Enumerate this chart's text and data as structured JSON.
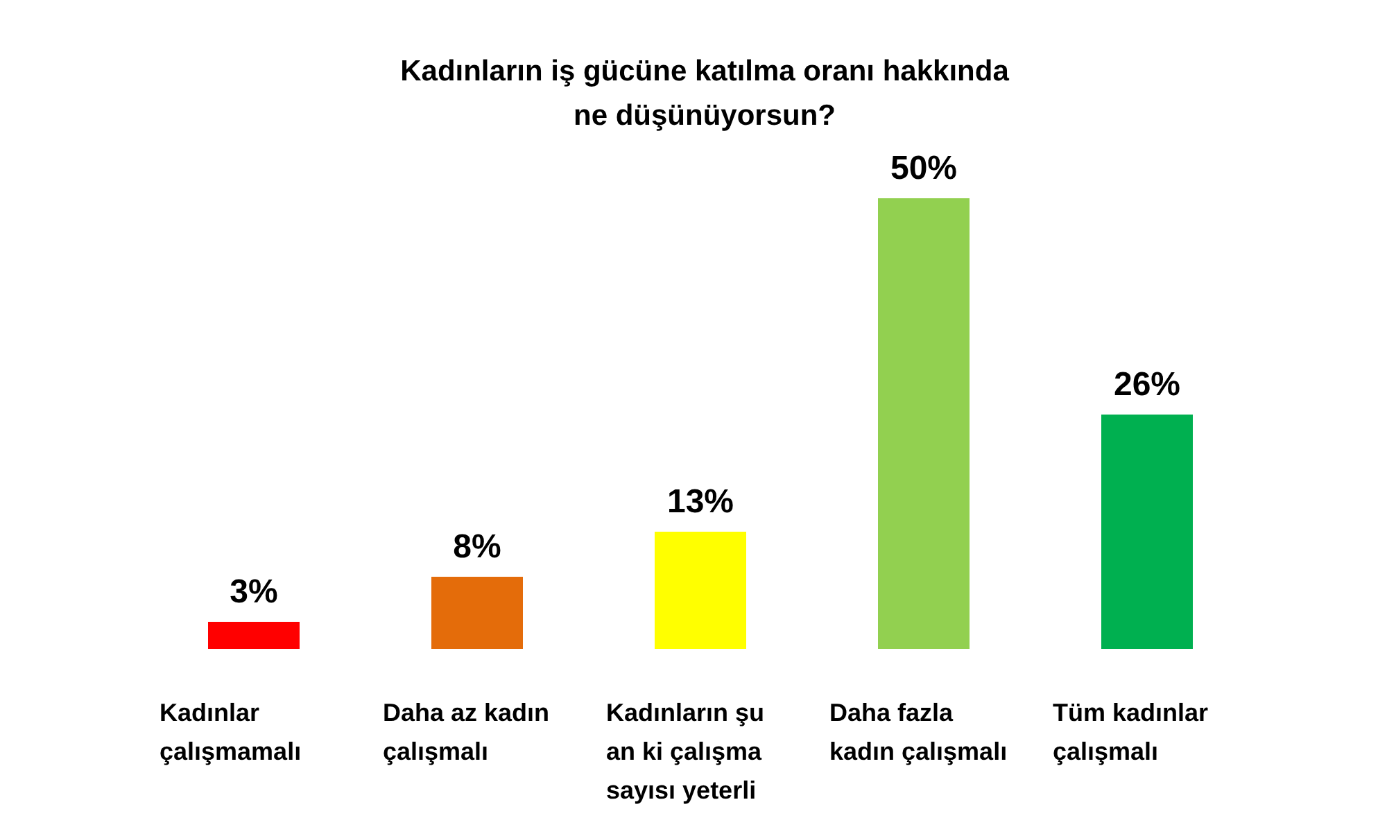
{
  "chart_data": {
    "type": "bar",
    "title": "Kadınların iş gücüne katılma oranı hakkında ne düşünüyorsun?",
    "categories": [
      "Kadınlar çalışmamalı",
      "Daha az kadın çalışmalı",
      "Kadınların şu an ki çalışma sayısı yeterli",
      "Daha fazla kadın çalışmalı",
      "Tüm kadınlar çalışmalı"
    ],
    "values": [
      3,
      8,
      13,
      50,
      26
    ],
    "colors": [
      "#ff0000",
      "#e46c0a",
      "#ffff00",
      "#92d050",
      "#00b050"
    ],
    "value_labels": [
      "3%",
      "8%",
      "13%",
      "50%",
      "26%"
    ]
  }
}
